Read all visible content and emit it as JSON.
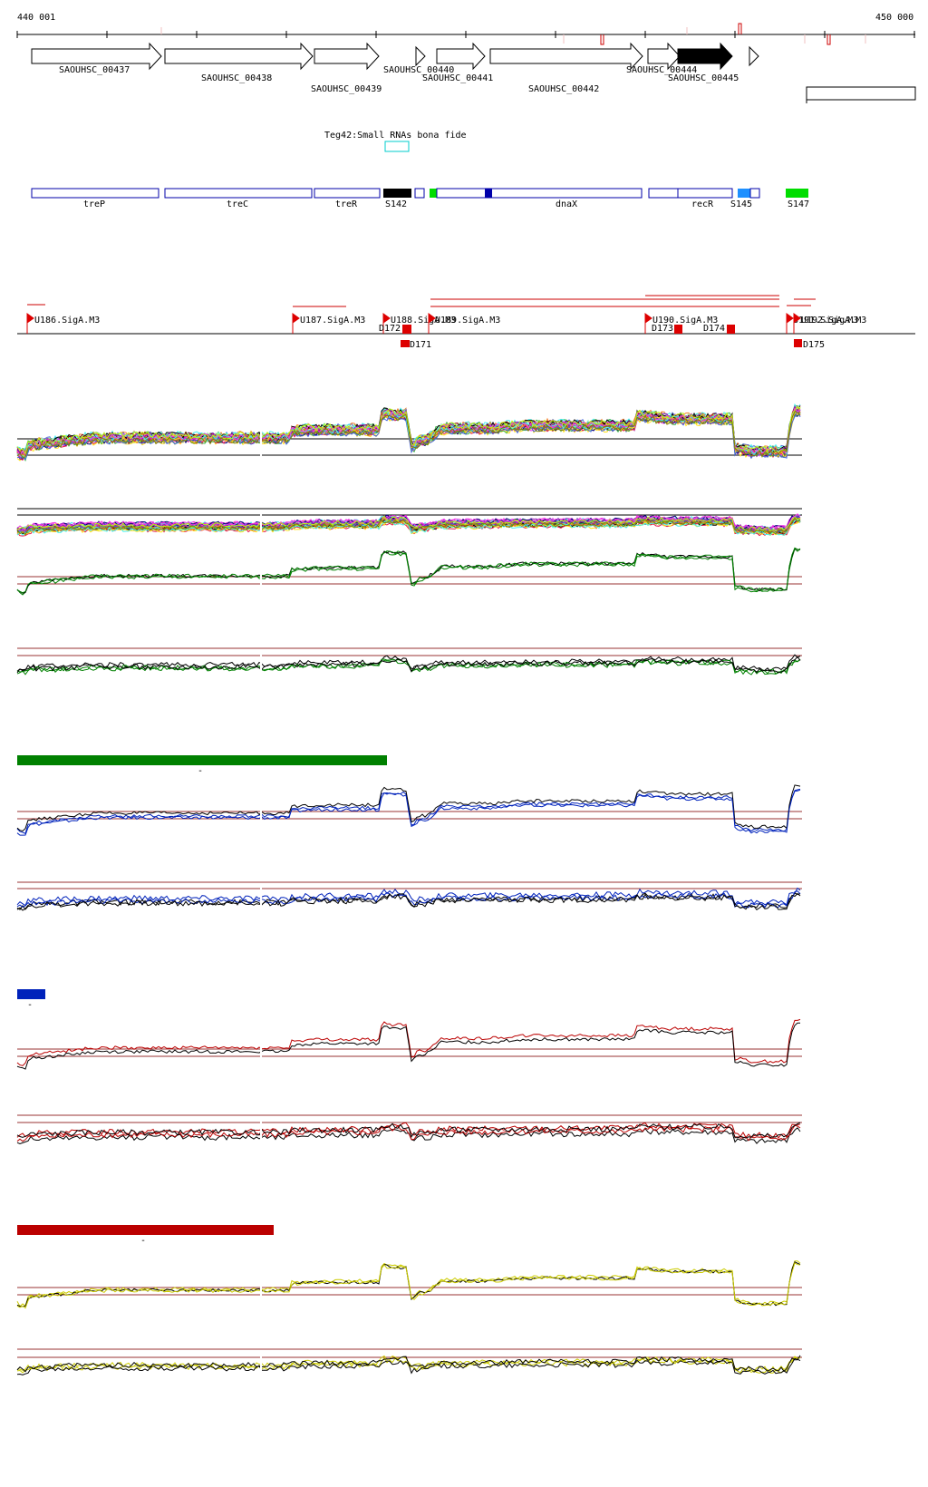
{
  "ruler": {
    "start_label": "440 001",
    "end_label": "450 000"
  },
  "genes": [
    {
      "label": "SAOUHSC_00437",
      "filled": false
    },
    {
      "label": "SAOUHSC_00438",
      "filled": false
    },
    {
      "label": "SAOUHSC_00439",
      "filled": false
    },
    {
      "label": "SAOUHSC_00440",
      "filled": false
    },
    {
      "label": "SAOUHSC_00441",
      "filled": false
    },
    {
      "label": "SAOUHSC_00442",
      "filled": false
    },
    {
      "label": "SAOUHSC_00444",
      "filled": false
    },
    {
      "label": "SAOUHSC_00445",
      "filled": true
    }
  ],
  "srna_track": {
    "label": "Teg42:Small RNAs bona fide"
  },
  "features": [
    {
      "label": "treP",
      "color": "#0000aa"
    },
    {
      "label": "treC",
      "color": "#0000aa"
    },
    {
      "label": "treR",
      "color": "#0000aa"
    },
    {
      "label": "S142",
      "color": "#000000"
    },
    {
      "label": "dnaX",
      "color": "#0000aa"
    },
    {
      "label": "recR",
      "color": "#0000aa"
    },
    {
      "label": "S145",
      "color": "#1e90ff"
    },
    {
      "label": "S147",
      "color": "#00dd00"
    }
  ],
  "promoters": [
    {
      "label": "U186.SigA.M3"
    },
    {
      "label": "U187.SigA.M3"
    },
    {
      "label": "U188.SigA.M3"
    },
    {
      "label": "U189.SigA.M3"
    },
    {
      "label": "U190.SigA.M3"
    },
    {
      "label": "U191.SigA.M3"
    },
    {
      "label": "U192.SigA.M3"
    }
  ],
  "terminators": [
    {
      "label": "D172"
    },
    {
      "label": "D171"
    },
    {
      "label": "D173"
    },
    {
      "label": "D174"
    },
    {
      "label": "D175"
    }
  ],
  "colors": {
    "green": "#008000",
    "blue": "#0022bb",
    "red": "#bb0000",
    "yellow": "#cccc00",
    "threshold": "#993333"
  },
  "scale_tick_label": "-"
}
